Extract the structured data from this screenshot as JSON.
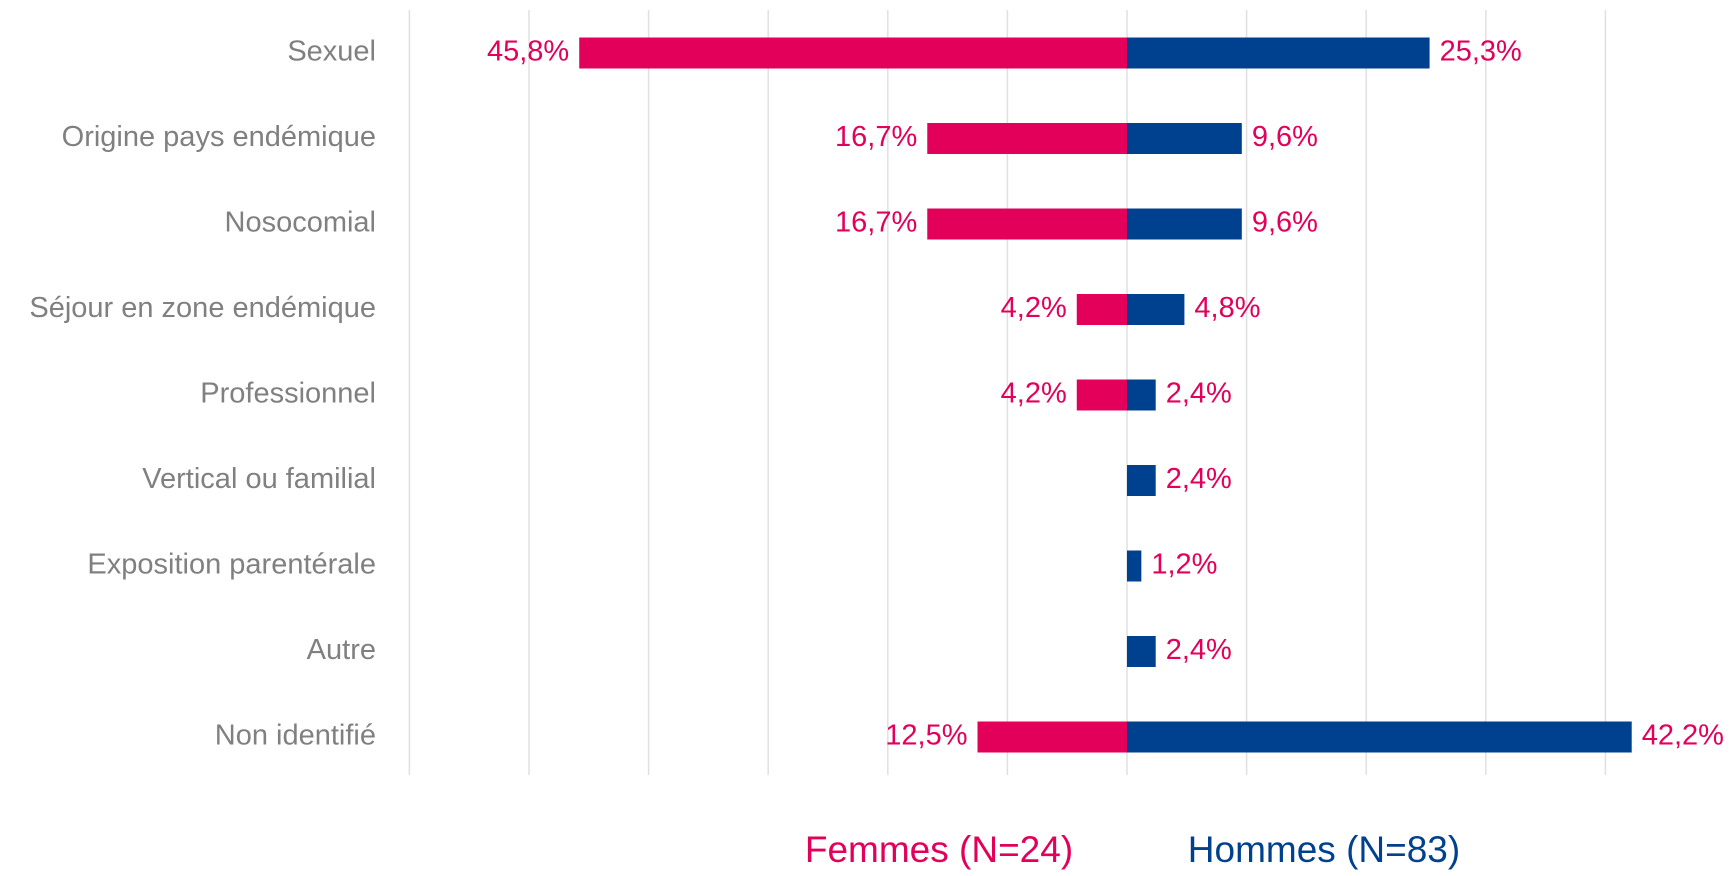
{
  "chart_data": {
    "type": "butterfly-bar",
    "categories": [
      "Sexuel",
      "Origine pays endémique",
      "Nosocomial",
      "Séjour en zone endémique",
      "Professionnel",
      "Vertical ou familial",
      "Exposition parentérale",
      "Autre",
      "Non identifié"
    ],
    "series": [
      {
        "name": "Femmes (N=24)",
        "color": "#e2005a",
        "side": "left",
        "values": [
          45.8,
          16.7,
          16.7,
          4.2,
          4.2,
          null,
          null,
          null,
          12.5
        ],
        "value_labels": [
          "45,8%",
          "16,7%",
          "16,7%",
          "4,2%",
          "4,2%",
          null,
          null,
          null,
          "12,5%"
        ]
      },
      {
        "name": "Hommes (N=83)",
        "color": "#00418f",
        "side": "right",
        "values": [
          25.3,
          9.6,
          9.6,
          4.8,
          2.4,
          2.4,
          1.2,
          2.4,
          42.2
        ],
        "value_labels": [
          "25,3%",
          "9,6%",
          "9,6%",
          "4,8%",
          "2,4%",
          "2,4%",
          "1,2%",
          "2,4%",
          "42,2%"
        ]
      }
    ],
    "label_color": "#e2005a",
    "xlim": [
      -60,
      40
    ],
    "xticks": [
      -60,
      -50,
      -40,
      -30,
      -20,
      -10,
      0,
      10,
      20,
      30,
      40
    ],
    "grid": true
  }
}
